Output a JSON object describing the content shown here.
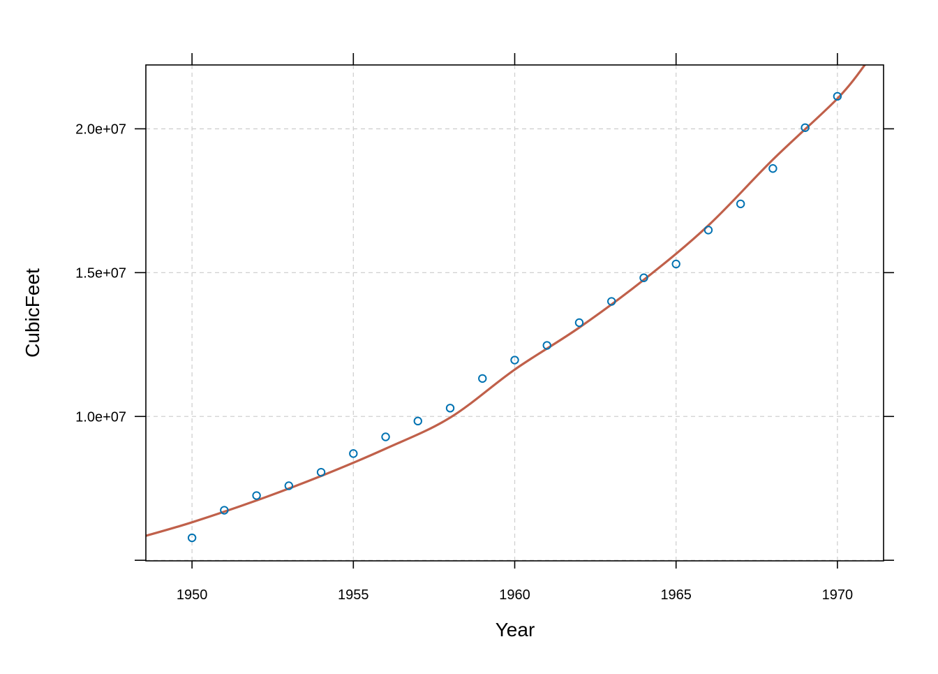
{
  "chart_data": {
    "type": "scatter",
    "title": "",
    "xlabel": "Year",
    "ylabel": "CubicFeet",
    "xlim": [
      1948.57,
      1971.43
    ],
    "ylim": [
      4980000,
      22220000
    ],
    "x_ticks": [
      1950,
      1955,
      1960,
      1965,
      1970
    ],
    "x_tick_labels": [
      "1950",
      "1955",
      "1960",
      "1965",
      "1970"
    ],
    "y_ticks": [
      5000000,
      10000000,
      15000000,
      20000000
    ],
    "y_tick_labels": [
      "",
      "1.0e+07",
      "1.5e+07",
      "2.0e+07"
    ],
    "grid": true,
    "series": [
      {
        "type": "scatter",
        "x": [
          1950,
          1951,
          1952,
          1953,
          1954,
          1955,
          1956,
          1957,
          1958,
          1959,
          1960,
          1961,
          1962,
          1963,
          1964,
          1965,
          1966,
          1967,
          1968,
          1969,
          1970
        ],
        "values": [
          5780000,
          6740000,
          7250000,
          7590000,
          8060000,
          8710000,
          9290000,
          9840000,
          10290000,
          11320000,
          11960000,
          12470000,
          13260000,
          14000000,
          14820000,
          15300000,
          16480000,
          17390000,
          18620000,
          20040000,
          21130000
        ]
      },
      {
        "type": "line",
        "x": [
          1948.57,
          1950,
          1952,
          1954,
          1956,
          1958,
          1960,
          1962,
          1964,
          1966,
          1968,
          1970,
          1970.85
        ],
        "values": [
          5850000,
          6320000,
          7080000,
          7930000,
          8880000,
          9960000,
          11630000,
          13090000,
          14750000,
          16640000,
          18930000,
          21050000,
          22220000
        ]
      }
    ],
    "colors": {
      "points": "#0072B2",
      "curve": "#C0604A",
      "grid": "#d0d0d0",
      "axis": "#000000"
    }
  }
}
